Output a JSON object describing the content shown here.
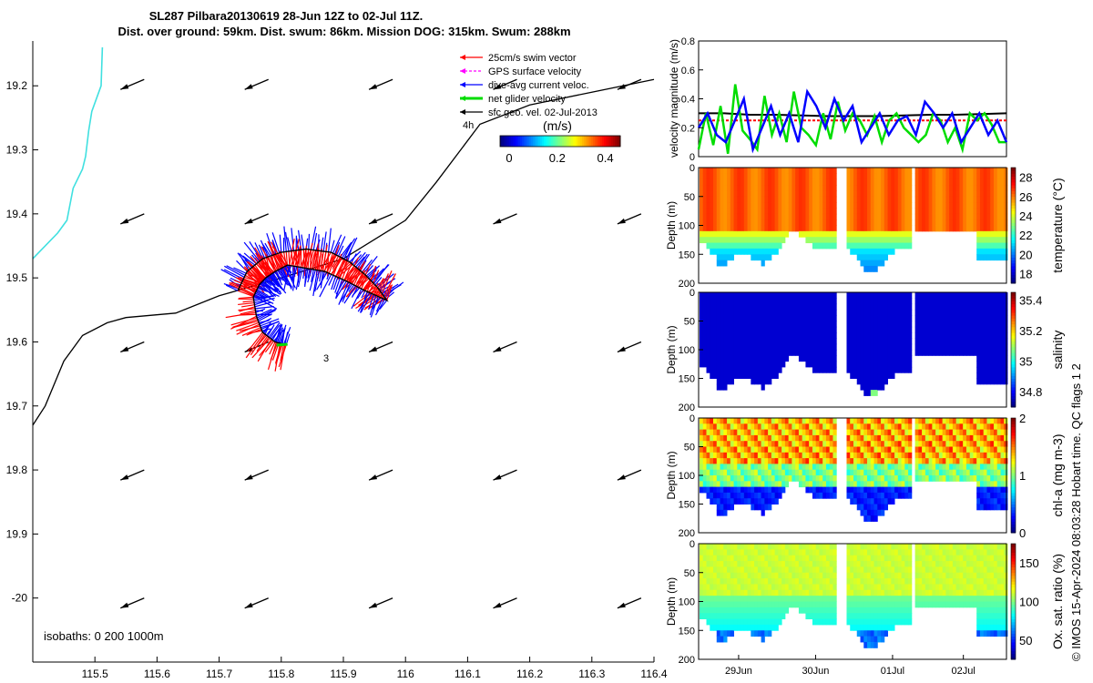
{
  "title_line1": "SL287 Pilbara20130619 28-Jun 12Z to 02-Jul 11Z.",
  "title_line2": "Dist. over ground: 59km. Dist. swum: 86km. Mission DOG: 315km. Swum: 288km",
  "copyright": "© IMOS 15-Apr-2024 08:03:28 Hobart time. QC flags 1  2",
  "chart_data": [
    {
      "type": "scatter",
      "name": "map",
      "x_ticks": [
        115.5,
        115.6,
        115.7,
        115.8,
        115.9,
        116,
        116.1,
        116.2,
        116.3,
        116.4
      ],
      "y_ticks": [
        19.2,
        19.3,
        19.4,
        19.5,
        19.6,
        19.7,
        19.8,
        19.9,
        -20
      ],
      "xlim": [
        115.4,
        116.4
      ],
      "ylim": [
        19.13,
        20.1
      ],
      "legend": [
        {
          "label": "25cm/s swim vector",
          "color": "#ff0000"
        },
        {
          "label": "GPS surface velocity",
          "color": "#ff00ff"
        },
        {
          "label": "dive-avg current veloc.",
          "color": "#0000ff"
        },
        {
          "label": "net glider velocity",
          "color": "#00dd00"
        },
        {
          "label": "sfc geo. vel. 02-Jul-2013",
          "color": "#000000"
        }
      ],
      "legend_placement": "top-right",
      "colorbar_unit": "(m/s)",
      "colorbar_ticks": [
        "0",
        "0.2",
        "0.4"
      ],
      "annotations": [
        "4h",
        "3"
      ],
      "isobaths_text": "isobaths: 0   200  1000m",
      "glider_track": [
        [
          115.73,
          19.52
        ],
        [
          115.745,
          19.49
        ],
        [
          115.77,
          19.47
        ],
        [
          115.8,
          19.46
        ],
        [
          115.84,
          19.455
        ],
        [
          115.88,
          19.46
        ],
        [
          115.91,
          19.475
        ],
        [
          115.935,
          19.495
        ],
        [
          115.955,
          19.515
        ],
        [
          115.97,
          19.535
        ],
        [
          115.935,
          19.52
        ],
        [
          115.905,
          19.505
        ],
        [
          115.87,
          19.49
        ],
        [
          115.84,
          19.485
        ],
        [
          115.81,
          19.48
        ],
        [
          115.79,
          19.49
        ],
        [
          115.775,
          19.5
        ],
        [
          115.765,
          19.51
        ],
        [
          115.755,
          19.53
        ],
        [
          115.76,
          19.56
        ],
        [
          115.77,
          19.585
        ],
        [
          115.79,
          19.6
        ],
        [
          115.81,
          19.605
        ]
      ],
      "isobath_black": [
        [
          115.4,
          19.73
        ],
        [
          115.42,
          19.7
        ],
        [
          115.45,
          19.63
        ],
        [
          115.48,
          19.59
        ],
        [
          115.52,
          19.57
        ],
        [
          115.55,
          19.562
        ],
        [
          115.63,
          19.555
        ],
        [
          115.7,
          19.528
        ],
        [
          115.8,
          19.5
        ],
        [
          115.9,
          19.47
        ],
        [
          116.0,
          19.41
        ],
        [
          116.05,
          19.35
        ],
        [
          116.12,
          19.26
        ],
        [
          116.2,
          19.23
        ],
        [
          116.3,
          19.21
        ],
        [
          116.4,
          19.19
        ]
      ],
      "isobath_cyan": [
        [
          115.4,
          19.47
        ],
        [
          115.44,
          19.43
        ],
        [
          115.455,
          19.41
        ],
        [
          115.465,
          19.36
        ],
        [
          115.48,
          19.33
        ],
        [
          115.485,
          19.31
        ],
        [
          115.49,
          19.27
        ],
        [
          115.495,
          19.24
        ],
        [
          115.51,
          19.2
        ],
        [
          115.512,
          19.14
        ]
      ],
      "geo_vectors_lon": [
        115.55,
        115.75,
        115.95,
        116.15,
        116.35
      ],
      "geo_vectors_lat": [
        19.2,
        19.41,
        19.61,
        19.81,
        20.01
      ]
    },
    {
      "type": "line",
      "name": "velocity",
      "ylabel": "velocity magnitude (m/s)",
      "y_ticks": [
        "0",
        "0.2",
        "0.4",
        "0.6",
        "0.8"
      ],
      "ylim": [
        0,
        0.8
      ],
      "xlim": [
        0,
        1
      ],
      "series": [
        {
          "color": "#000000",
          "values": [
            0.3,
            0.3,
            0.29,
            0.29,
            0.285,
            0.28,
            0.28,
            0.28,
            0.285,
            0.29,
            0.29,
            0.295,
            0.3
          ]
        },
        {
          "color": "#ff0000",
          "values": [
            0.25,
            0.25,
            0.25,
            0.25,
            0.25,
            0.25,
            0.25,
            0.25,
            0.25,
            0.25,
            0.25,
            0.25,
            0.25
          ]
        },
        {
          "color": "#00dd00",
          "values": [
            0.05,
            0.3,
            0.08,
            0.35,
            0.02,
            0.5,
            0.18,
            0.12,
            0.05,
            0.42,
            0.15,
            0.3,
            0.1,
            0.45,
            0.2,
            0.15,
            0.08,
            0.3,
            0.12,
            0.38,
            0.18,
            0.3,
            0.25,
            0.15,
            0.28,
            0.1,
            0.25,
            0.3,
            0.2,
            0.15,
            0.1,
            0.15,
            0.3,
            0.25,
            0.1,
            0.2,
            0.05,
            0.3,
            0.25,
            0.3,
            0.22,
            0.1,
            0.1
          ]
        },
        {
          "color": "#0000ff",
          "values": [
            0.2,
            0.3,
            0.15,
            0.1,
            0.25,
            0.4,
            0.05,
            0.2,
            0.35,
            0.15,
            0.3,
            0.1,
            0.45,
            0.35,
            0.2,
            0.4,
            0.25,
            0.35,
            0.1,
            0.2,
            0.3,
            0.15,
            0.25,
            0.28,
            0.15,
            0.38,
            0.3,
            0.2,
            0.3,
            0.1,
            0.2,
            0.3,
            0.15,
            0.25,
            0.1
          ]
        }
      ]
    },
    {
      "type": "heatmap",
      "name": "temperature",
      "ylabel": "Depth (m)",
      "colorbar_label": "temperature (°C)",
      "colorbar_ticks": [
        "18",
        "20",
        "22",
        "24",
        "26",
        "28"
      ],
      "colorbar_range": [
        17,
        29
      ],
      "y_ticks": [
        "0",
        "50",
        "100",
        "150",
        "200"
      ],
      "ylim": [
        0,
        200
      ]
    },
    {
      "type": "heatmap",
      "name": "salinity",
      "ylabel": "Depth (m)",
      "colorbar_label": "salinity",
      "colorbar_ticks": [
        "34.8",
        "35",
        "35.2",
        "35.4"
      ],
      "colorbar_range": [
        34.7,
        35.45
      ],
      "y_ticks": [
        "0",
        "50",
        "100",
        "150",
        "200"
      ],
      "ylim": [
        0,
        200
      ]
    },
    {
      "type": "heatmap",
      "name": "chlorophyll",
      "ylabel": "Depth (m)",
      "colorbar_label": "chl-a (mg m-3)",
      "colorbar_ticks": [
        "0",
        "1",
        "2"
      ],
      "colorbar_range": [
        0,
        2
      ],
      "y_ticks": [
        "0",
        "50",
        "100",
        "150",
        "200"
      ],
      "ylim": [
        0,
        200
      ]
    },
    {
      "type": "heatmap",
      "name": "oxygen",
      "ylabel": "Depth (m)",
      "colorbar_label": "Ox. sat. ratio (%)",
      "colorbar_ticks": [
        "50",
        "100",
        "150"
      ],
      "colorbar_range": [
        25,
        175
      ],
      "y_ticks": [
        "0",
        "50",
        "100",
        "150",
        "200"
      ],
      "ylim": [
        0,
        200
      ],
      "x_ticks": [
        "29Jun",
        "30Jun",
        "01Jul",
        "02Jul"
      ]
    }
  ]
}
